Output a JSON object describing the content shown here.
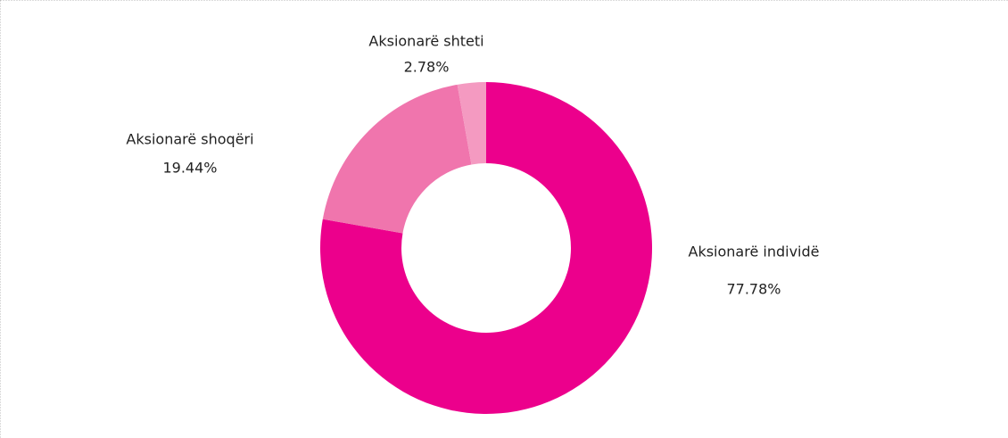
{
  "chart_data": {
    "type": "donut",
    "categories": [
      "Aksionarë individë",
      "Aksionarë shoqëri",
      "Aksionarë shteti"
    ],
    "values": [
      77.78,
      19.44,
      2.78
    ],
    "value_labels": [
      "77.78%",
      "19.44%",
      "2.78%"
    ],
    "colors": [
      "#ec008c",
      "#f075ad",
      "#f49ac1"
    ]
  }
}
